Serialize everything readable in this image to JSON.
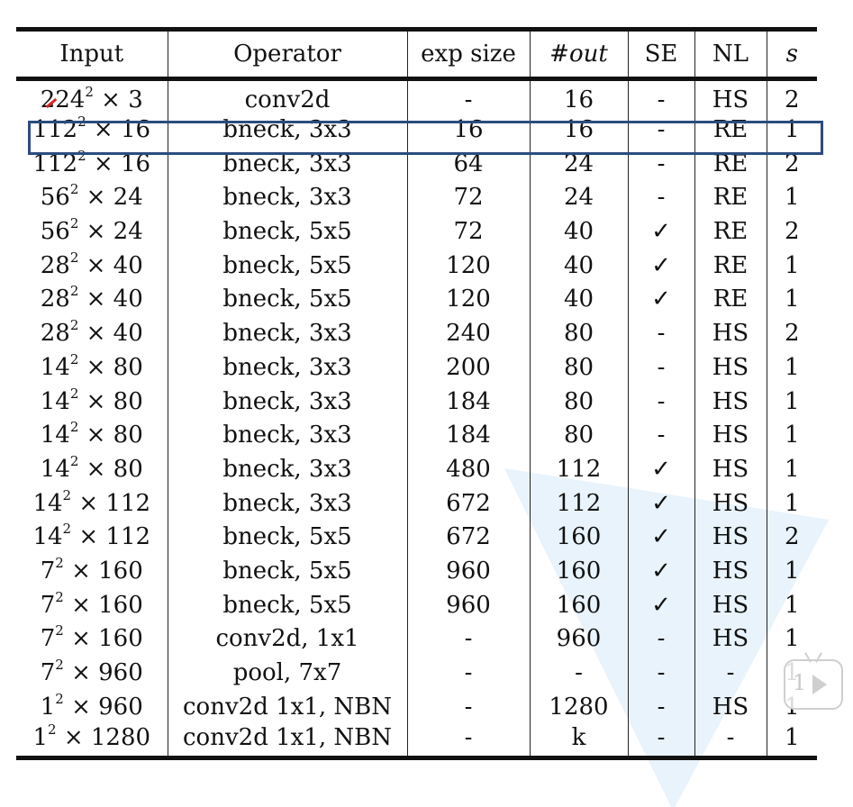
{
  "table": {
    "headers": {
      "input": "Input",
      "operator": "Operator",
      "exp_size": "exp size",
      "out": "#out",
      "se": "SE",
      "nl": "NL",
      "s": "s"
    },
    "rows": [
      {
        "input_base": "224",
        "input_exp": "2",
        "input_rest": "× 3",
        "operator": "conv2d",
        "exp_size": "-",
        "out": "16",
        "se": "-",
        "nl": "HS",
        "s": "2"
      },
      {
        "input_base": "112",
        "input_exp": "2",
        "input_rest": "× 16",
        "operator": "bneck, 3x3",
        "exp_size": "16",
        "out": "16",
        "se": "-",
        "nl": "RE",
        "s": "1"
      },
      {
        "input_base": "112",
        "input_exp": "2",
        "input_rest": "× 16",
        "operator": "bneck, 3x3",
        "exp_size": "64",
        "out": "24",
        "se": "-",
        "nl": "RE",
        "s": "2"
      },
      {
        "input_base": "56",
        "input_exp": "2",
        "input_rest": "× 24",
        "operator": "bneck, 3x3",
        "exp_size": "72",
        "out": "24",
        "se": "-",
        "nl": "RE",
        "s": "1"
      },
      {
        "input_base": "56",
        "input_exp": "2",
        "input_rest": "× 24",
        "operator": "bneck, 5x5",
        "exp_size": "72",
        "out": "40",
        "se": "✓",
        "nl": "RE",
        "s": "2"
      },
      {
        "input_base": "28",
        "input_exp": "2",
        "input_rest": "× 40",
        "operator": "bneck, 5x5",
        "exp_size": "120",
        "out": "40",
        "se": "✓",
        "nl": "RE",
        "s": "1"
      },
      {
        "input_base": "28",
        "input_exp": "2",
        "input_rest": "× 40",
        "operator": "bneck, 5x5",
        "exp_size": "120",
        "out": "40",
        "se": "✓",
        "nl": "RE",
        "s": "1"
      },
      {
        "input_base": "28",
        "input_exp": "2",
        "input_rest": "× 40",
        "operator": "bneck, 3x3",
        "exp_size": "240",
        "out": "80",
        "se": "-",
        "nl": "HS",
        "s": "2"
      },
      {
        "input_base": "14",
        "input_exp": "2",
        "input_rest": "× 80",
        "operator": "bneck, 3x3",
        "exp_size": "200",
        "out": "80",
        "se": "-",
        "nl": "HS",
        "s": "1"
      },
      {
        "input_base": "14",
        "input_exp": "2",
        "input_rest": "× 80",
        "operator": "bneck, 3x3",
        "exp_size": "184",
        "out": "80",
        "se": "-",
        "nl": "HS",
        "s": "1"
      },
      {
        "input_base": "14",
        "input_exp": "2",
        "input_rest": "× 80",
        "operator": "bneck, 3x3",
        "exp_size": "184",
        "out": "80",
        "se": "-",
        "nl": "HS",
        "s": "1"
      },
      {
        "input_base": "14",
        "input_exp": "2",
        "input_rest": "× 80",
        "operator": "bneck, 3x3",
        "exp_size": "480",
        "out": "112",
        "se": "✓",
        "nl": "HS",
        "s": "1"
      },
      {
        "input_base": "14",
        "input_exp": "2",
        "input_rest": "× 112",
        "operator": "bneck, 3x3",
        "exp_size": "672",
        "out": "112",
        "se": "✓",
        "nl": "HS",
        "s": "1"
      },
      {
        "input_base": "14",
        "input_exp": "2",
        "input_rest": "× 112",
        "operator": "bneck, 5x5",
        "exp_size": "672",
        "out": "160",
        "se": "✓",
        "nl": "HS",
        "s": "2"
      },
      {
        "input_base": "7",
        "input_exp": "2",
        "input_rest": "× 160",
        "operator": "bneck, 5x5",
        "exp_size": "960",
        "out": "160",
        "se": "✓",
        "nl": "HS",
        "s": "1"
      },
      {
        "input_base": "7",
        "input_exp": "2",
        "input_rest": "× 160",
        "operator": "bneck, 5x5",
        "exp_size": "960",
        "out": "160",
        "se": "✓",
        "nl": "HS",
        "s": "1"
      },
      {
        "input_base": "7",
        "input_exp": "2",
        "input_rest": "× 160",
        "operator": "conv2d, 1x1",
        "exp_size": "-",
        "out": "960",
        "se": "-",
        "nl": "HS",
        "s": "1"
      },
      {
        "input_base": "7",
        "input_exp": "2",
        "input_rest": "× 960",
        "operator": "pool, 7x7",
        "exp_size": "-",
        "out": "-",
        "se": "-",
        "nl": "-",
        "s": "1"
      },
      {
        "input_base": "1",
        "input_exp": "2",
        "input_rest": "× 960",
        "operator": "conv2d 1x1, NBN",
        "exp_size": "-",
        "out": "1280",
        "se": "-",
        "nl": "HS",
        "s": "1"
      },
      {
        "input_base": "1",
        "input_exp": "2",
        "input_rest": "× 1280",
        "operator": "conv2d 1x1, NBN",
        "exp_size": "-",
        "out": "k",
        "se": "-",
        "nl": "-",
        "s": "1"
      }
    ]
  },
  "overlay": {
    "highlighted_row_index": 1,
    "highlight_color": "#2b4c7e",
    "video_badge_number": "1",
    "video_badge_icon": "play-icon"
  }
}
